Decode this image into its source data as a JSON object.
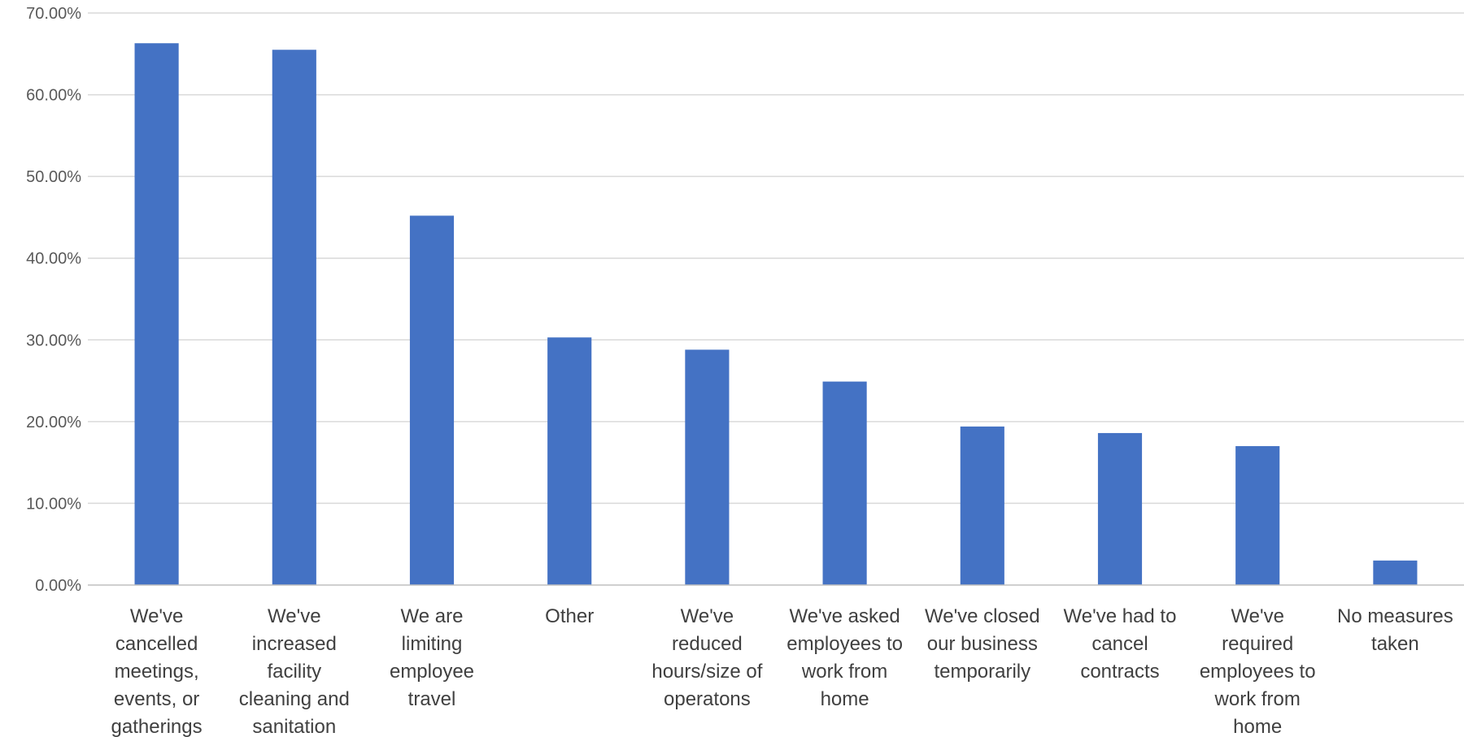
{
  "chart_data": {
    "type": "bar",
    "title": "",
    "xlabel": "",
    "ylabel": "",
    "ylim": [
      0,
      70
    ],
    "y_tick_values": [
      0,
      10,
      20,
      30,
      40,
      50,
      60,
      70
    ],
    "y_tick_labels": [
      "0.00%",
      "10.00%",
      "20.00%",
      "30.00%",
      "40.00%",
      "50.00%",
      "60.00%",
      "70.00%"
    ],
    "grid": true,
    "legend": "none",
    "bar_color": "#4472c4",
    "categories": [
      [
        "We've",
        "cancelled",
        "meetings,",
        "events, or",
        "gatherings"
      ],
      [
        "We've",
        "increased",
        "facility",
        "cleaning and",
        "sanitation"
      ],
      [
        "We are",
        "limiting",
        "employee",
        "travel"
      ],
      [
        "Other"
      ],
      [
        "We've",
        "reduced",
        "hours/size of",
        "operatons"
      ],
      [
        "We've asked",
        "employees to",
        "work from",
        "home"
      ],
      [
        "We've closed",
        "our business",
        "temporarily"
      ],
      [
        "We've had to",
        "cancel",
        "contracts"
      ],
      [
        "We've",
        "required",
        "employees to",
        "work from",
        "home"
      ],
      [
        "No measures",
        "taken"
      ]
    ],
    "values": [
      66.3,
      65.5,
      45.2,
      30.3,
      28.8,
      24.9,
      19.4,
      18.6,
      17.0,
      3.0
    ]
  }
}
